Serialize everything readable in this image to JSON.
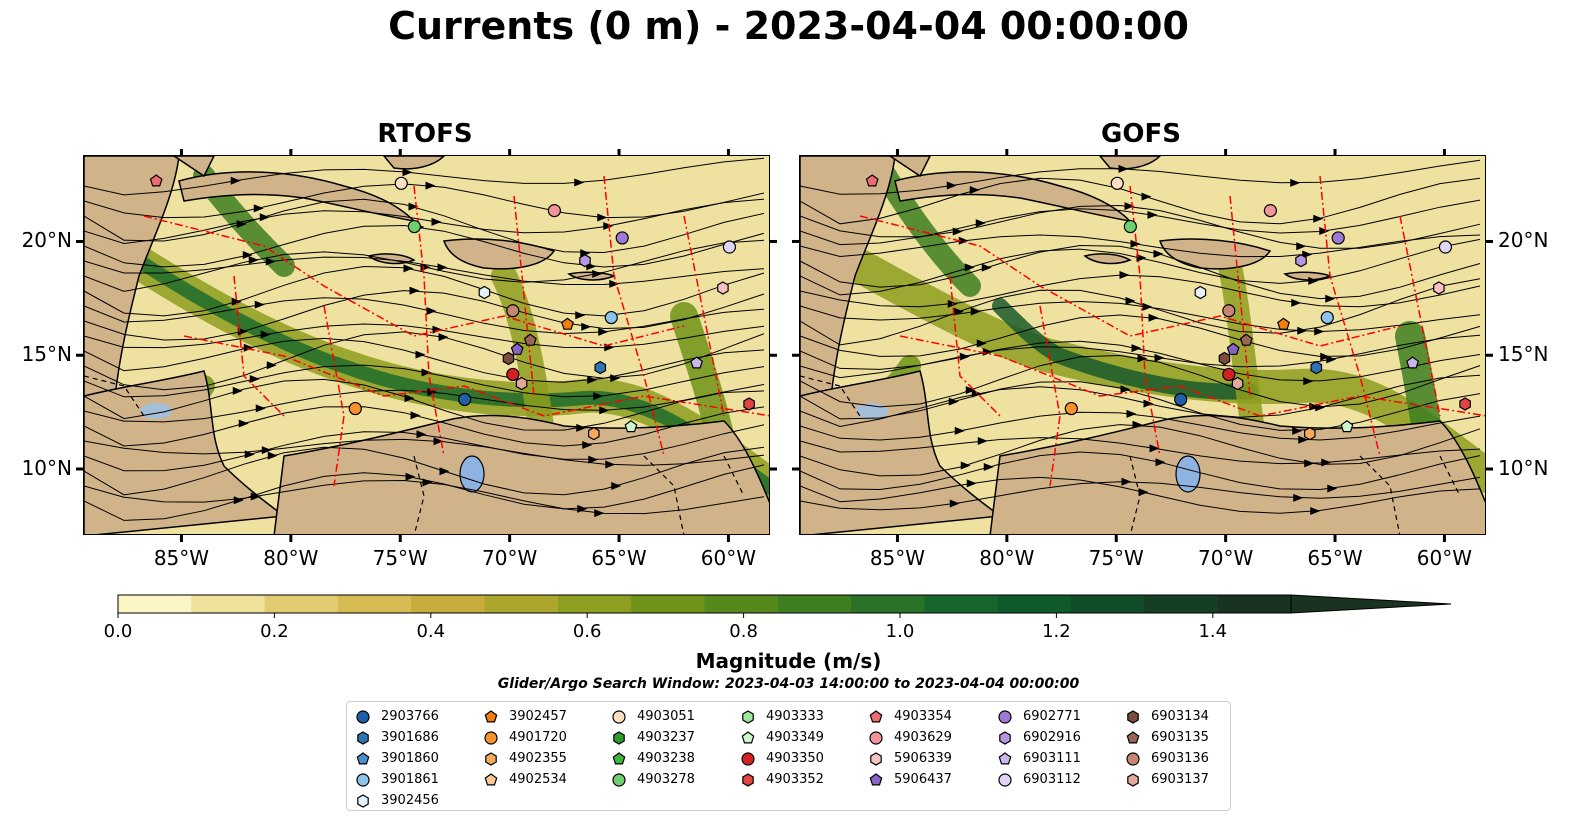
{
  "title": "Currents (0 m) - 2023-04-04 00:00:00",
  "panels": [
    {
      "title": "RTOFS"
    },
    {
      "title": "GOFS"
    }
  ],
  "x_ticks": [
    "85°W",
    "80°W",
    "75°W",
    "70°W",
    "65°W",
    "60°W"
  ],
  "y_ticks": [
    "20°N",
    "15°N",
    "10°N"
  ],
  "colorbar": {
    "label": "Magnitude (m/s)",
    "ticks": [
      "0.0",
      "0.2",
      "0.4",
      "0.6",
      "0.8",
      "1.0",
      "1.2",
      "1.4"
    ],
    "colors": [
      "#fcf6c6",
      "#efe09a",
      "#e2cc73",
      "#d6ba52",
      "#c7ac3c",
      "#aca62c",
      "#8e9e1e",
      "#6f9318",
      "#56891b",
      "#3d7e21",
      "#2a7227",
      "#16662d",
      "#0e5a2b",
      "#0f4c27",
      "#163e24",
      "#1a3220"
    ]
  },
  "legend": {
    "subtitle": "Glider/Argo Search Window: 2023-04-03 14:00:00 to 2023-04-04 00:00:00",
    "columns": [
      [
        {
          "id": "2903766",
          "marker": "circle",
          "color": "#1f5fa8"
        },
        {
          "id": "3901686",
          "marker": "hexagon",
          "color": "#2e74b5"
        },
        {
          "id": "3901860",
          "marker": "pentagon",
          "color": "#4a90d0"
        },
        {
          "id": "3901861",
          "marker": "circle",
          "color": "#8ec3ec"
        },
        {
          "id": "3902456",
          "marker": "hexagon",
          "color": "#e6f2fb"
        }
      ],
      [
        {
          "id": "3902457",
          "marker": "pentagon",
          "color": "#f07f10"
        },
        {
          "id": "4901720",
          "marker": "circle",
          "color": "#f7922e"
        },
        {
          "id": "4902355",
          "marker": "hexagon",
          "color": "#f8aa5c"
        },
        {
          "id": "4902534",
          "marker": "pentagon",
          "color": "#fcc890"
        }
      ],
      [
        {
          "id": "4903051",
          "marker": "circle",
          "color": "#fde0c4"
        },
        {
          "id": "4903237",
          "marker": "hexagon",
          "color": "#2a9d2a"
        },
        {
          "id": "4903238",
          "marker": "pentagon",
          "color": "#3cb83c"
        },
        {
          "id": "4903278",
          "marker": "circle",
          "color": "#6fd06f"
        }
      ],
      [
        {
          "id": "4903333",
          "marker": "hexagon",
          "color": "#9be79b"
        },
        {
          "id": "4903349",
          "marker": "pentagon",
          "color": "#cff7cf"
        },
        {
          "id": "4903350",
          "marker": "circle",
          "color": "#d32020"
        },
        {
          "id": "4903352",
          "marker": "hexagon",
          "color": "#e24444"
        }
      ],
      [
        {
          "id": "4903354",
          "marker": "pentagon",
          "color": "#ee6b74"
        },
        {
          "id": "4903629",
          "marker": "circle",
          "color": "#f1959a"
        },
        {
          "id": "5906339",
          "marker": "hexagon",
          "color": "#f8c2c4"
        },
        {
          "id": "5906437",
          "marker": "pentagon",
          "color": "#8a63c8"
        }
      ],
      [
        {
          "id": "6902771",
          "marker": "circle",
          "color": "#9e7ad4"
        },
        {
          "id": "6902916",
          "marker": "hexagon",
          "color": "#b497e0"
        },
        {
          "id": "6903111",
          "marker": "pentagon",
          "color": "#cbb6ec"
        },
        {
          "id": "6903112",
          "marker": "circle",
          "color": "#e2d4f6"
        }
      ],
      [
        {
          "id": "6903134",
          "marker": "hexagon",
          "color": "#7b4b3e"
        },
        {
          "id": "6903135",
          "marker": "pentagon",
          "color": "#9a6657"
        },
        {
          "id": "6903136",
          "marker": "circle",
          "color": "#c78576"
        },
        {
          "id": "6903137",
          "marker": "hexagon",
          "color": "#e3aa9b"
        }
      ]
    ]
  },
  "map_markers": [
    {
      "id": "4903354",
      "marker": "pentagon",
      "color": "#ee6b74",
      "lon": -86.2,
      "lat": 22.7
    },
    {
      "id": "4903051",
      "marker": "circle",
      "color": "#fde0c4",
      "lon": -75.0,
      "lat": 22.6
    },
    {
      "id": "4903278",
      "marker": "circle",
      "color": "#6fd06f",
      "lon": -74.4,
      "lat": 20.7
    },
    {
      "id": "4903629",
      "marker": "circle",
      "color": "#f1959a",
      "lon": -68.0,
      "lat": 21.4
    },
    {
      "id": "6902771",
      "marker": "circle",
      "color": "#9e7ad4",
      "lon": -64.9,
      "lat": 20.2
    },
    {
      "id": "6902916",
      "marker": "hexagon",
      "color": "#b497e0",
      "lon": -66.6,
      "lat": 19.2
    },
    {
      "id": "6903112",
      "marker": "circle",
      "color": "#e2d4f6",
      "lon": -60.0,
      "lat": 19.8
    },
    {
      "id": "5906339",
      "marker": "hexagon",
      "color": "#f8c2c4",
      "lon": -60.3,
      "lat": 18.0
    },
    {
      "id": "3902456",
      "marker": "hexagon",
      "color": "#e6f2fb",
      "lon": -71.2,
      "lat": 17.8
    },
    {
      "id": "6903136",
      "marker": "circle",
      "color": "#c78576",
      "lon": -69.9,
      "lat": 17.0
    },
    {
      "id": "3901861",
      "marker": "circle",
      "color": "#8ec3ec",
      "lon": -65.4,
      "lat": 16.7
    },
    {
      "id": "3902457",
      "marker": "pentagon",
      "color": "#f07f10",
      "lon": -67.4,
      "lat": 16.4
    },
    {
      "id": "6903135",
      "marker": "pentagon",
      "color": "#9a6657",
      "lon": -69.1,
      "lat": 15.7
    },
    {
      "id": "5906437",
      "marker": "pentagon",
      "color": "#8a63c8",
      "lon": -69.7,
      "lat": 15.3
    },
    {
      "id": "6903134",
      "marker": "hexagon",
      "color": "#7b4b3e",
      "lon": -70.1,
      "lat": 14.9
    },
    {
      "id": "3901686",
      "marker": "hexagon",
      "color": "#2e74b5",
      "lon": -65.9,
      "lat": 14.5
    },
    {
      "id": "6903111",
      "marker": "pentagon",
      "color": "#cbb6ec",
      "lon": -61.5,
      "lat": 14.7
    },
    {
      "id": "4903350",
      "marker": "circle",
      "color": "#d32020",
      "lon": -69.9,
      "lat": 14.2
    },
    {
      "id": "6903137",
      "marker": "hexagon",
      "color": "#e3aa9b",
      "lon": -69.5,
      "lat": 13.8
    },
    {
      "id": "2903766",
      "marker": "circle",
      "color": "#1f5fa8",
      "lon": -72.1,
      "lat": 13.1
    },
    {
      "id": "4901720",
      "marker": "circle",
      "color": "#f7922e",
      "lon": -77.1,
      "lat": 12.7
    },
    {
      "id": "4903349",
      "marker": "pentagon",
      "color": "#cff7cf",
      "lon": -64.5,
      "lat": 11.9
    },
    {
      "id": "4902355",
      "marker": "hexagon",
      "color": "#f8aa5c",
      "lon": -66.2,
      "lat": 11.6
    },
    {
      "id": "4903352",
      "marker": "hexagon",
      "color": "#e24444",
      "lon": -59.1,
      "lat": 12.9
    }
  ]
}
